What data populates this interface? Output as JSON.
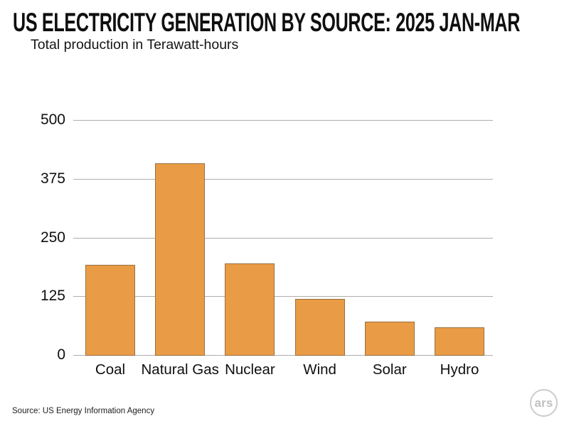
{
  "header": {
    "title": "US ELECTRICITY GENERATION BY SOURCE: 2025 JAN-MAR",
    "subtitle": "Total production in Terawatt-hours"
  },
  "chart_data": {
    "type": "bar",
    "title": "US ELECTRICITY GENERATION BY SOURCE: 2025 JAN-MAR",
    "subtitle": "Total production in Terawatt-hours",
    "categories": [
      "Coal",
      "Natural Gas",
      "Nuclear",
      "Wind",
      "Solar",
      "Hydro"
    ],
    "values": [
      194,
      410,
      196,
      121,
      73,
      61
    ],
    "xlabel": "",
    "ylabel": "",
    "ylim": [
      0,
      500
    ],
    "yticks": [
      0,
      125,
      250,
      375,
      500
    ],
    "grid": true,
    "legend": "none",
    "bar_color": "#e99c45",
    "bar_border_color": "#9a7040",
    "gridline_color": "#aeaeae"
  },
  "footer": {
    "source": "Source:  US Energy Information Agency",
    "logo": "ars"
  }
}
